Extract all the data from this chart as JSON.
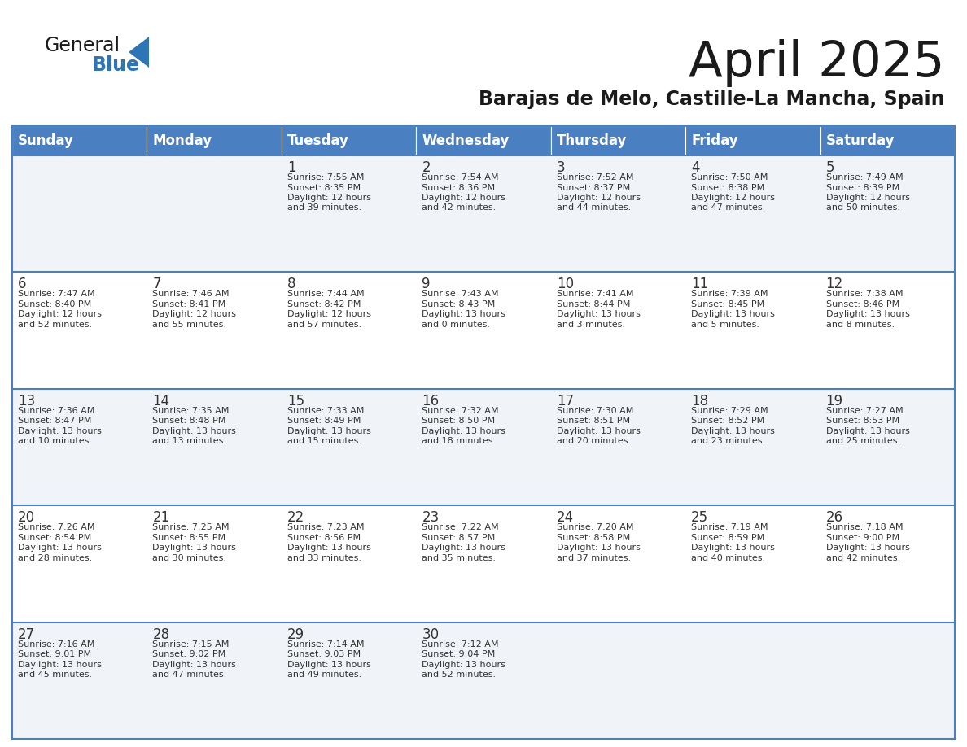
{
  "title": "April 2025",
  "subtitle": "Barajas de Melo, Castille-La Mancha, Spain",
  "header_color": "#4A7FC1",
  "header_text_color": "#FFFFFF",
  "cell_bg_odd": "#F0F4F8",
  "cell_bg_even": "#FFFFFF",
  "border_color": "#4A7FC1",
  "text_color": "#333333",
  "days_of_week": [
    "Sunday",
    "Monday",
    "Tuesday",
    "Wednesday",
    "Thursday",
    "Friday",
    "Saturday"
  ],
  "weeks": [
    [
      {
        "day": "",
        "info": ""
      },
      {
        "day": "",
        "info": ""
      },
      {
        "day": "1",
        "info": "Sunrise: 7:55 AM\nSunset: 8:35 PM\nDaylight: 12 hours\nand 39 minutes."
      },
      {
        "day": "2",
        "info": "Sunrise: 7:54 AM\nSunset: 8:36 PM\nDaylight: 12 hours\nand 42 minutes."
      },
      {
        "day": "3",
        "info": "Sunrise: 7:52 AM\nSunset: 8:37 PM\nDaylight: 12 hours\nand 44 minutes."
      },
      {
        "day": "4",
        "info": "Sunrise: 7:50 AM\nSunset: 8:38 PM\nDaylight: 12 hours\nand 47 minutes."
      },
      {
        "day": "5",
        "info": "Sunrise: 7:49 AM\nSunset: 8:39 PM\nDaylight: 12 hours\nand 50 minutes."
      }
    ],
    [
      {
        "day": "6",
        "info": "Sunrise: 7:47 AM\nSunset: 8:40 PM\nDaylight: 12 hours\nand 52 minutes."
      },
      {
        "day": "7",
        "info": "Sunrise: 7:46 AM\nSunset: 8:41 PM\nDaylight: 12 hours\nand 55 minutes."
      },
      {
        "day": "8",
        "info": "Sunrise: 7:44 AM\nSunset: 8:42 PM\nDaylight: 12 hours\nand 57 minutes."
      },
      {
        "day": "9",
        "info": "Sunrise: 7:43 AM\nSunset: 8:43 PM\nDaylight: 13 hours\nand 0 minutes."
      },
      {
        "day": "10",
        "info": "Sunrise: 7:41 AM\nSunset: 8:44 PM\nDaylight: 13 hours\nand 3 minutes."
      },
      {
        "day": "11",
        "info": "Sunrise: 7:39 AM\nSunset: 8:45 PM\nDaylight: 13 hours\nand 5 minutes."
      },
      {
        "day": "12",
        "info": "Sunrise: 7:38 AM\nSunset: 8:46 PM\nDaylight: 13 hours\nand 8 minutes."
      }
    ],
    [
      {
        "day": "13",
        "info": "Sunrise: 7:36 AM\nSunset: 8:47 PM\nDaylight: 13 hours\nand 10 minutes."
      },
      {
        "day": "14",
        "info": "Sunrise: 7:35 AM\nSunset: 8:48 PM\nDaylight: 13 hours\nand 13 minutes."
      },
      {
        "day": "15",
        "info": "Sunrise: 7:33 AM\nSunset: 8:49 PM\nDaylight: 13 hours\nand 15 minutes."
      },
      {
        "day": "16",
        "info": "Sunrise: 7:32 AM\nSunset: 8:50 PM\nDaylight: 13 hours\nand 18 minutes."
      },
      {
        "day": "17",
        "info": "Sunrise: 7:30 AM\nSunset: 8:51 PM\nDaylight: 13 hours\nand 20 minutes."
      },
      {
        "day": "18",
        "info": "Sunrise: 7:29 AM\nSunset: 8:52 PM\nDaylight: 13 hours\nand 23 minutes."
      },
      {
        "day": "19",
        "info": "Sunrise: 7:27 AM\nSunset: 8:53 PM\nDaylight: 13 hours\nand 25 minutes."
      }
    ],
    [
      {
        "day": "20",
        "info": "Sunrise: 7:26 AM\nSunset: 8:54 PM\nDaylight: 13 hours\nand 28 minutes."
      },
      {
        "day": "21",
        "info": "Sunrise: 7:25 AM\nSunset: 8:55 PM\nDaylight: 13 hours\nand 30 minutes."
      },
      {
        "day": "22",
        "info": "Sunrise: 7:23 AM\nSunset: 8:56 PM\nDaylight: 13 hours\nand 33 minutes."
      },
      {
        "day": "23",
        "info": "Sunrise: 7:22 AM\nSunset: 8:57 PM\nDaylight: 13 hours\nand 35 minutes."
      },
      {
        "day": "24",
        "info": "Sunrise: 7:20 AM\nSunset: 8:58 PM\nDaylight: 13 hours\nand 37 minutes."
      },
      {
        "day": "25",
        "info": "Sunrise: 7:19 AM\nSunset: 8:59 PM\nDaylight: 13 hours\nand 40 minutes."
      },
      {
        "day": "26",
        "info": "Sunrise: 7:18 AM\nSunset: 9:00 PM\nDaylight: 13 hours\nand 42 minutes."
      }
    ],
    [
      {
        "day": "27",
        "info": "Sunrise: 7:16 AM\nSunset: 9:01 PM\nDaylight: 13 hours\nand 45 minutes."
      },
      {
        "day": "28",
        "info": "Sunrise: 7:15 AM\nSunset: 9:02 PM\nDaylight: 13 hours\nand 47 minutes."
      },
      {
        "day": "29",
        "info": "Sunrise: 7:14 AM\nSunset: 9:03 PM\nDaylight: 13 hours\nand 49 minutes."
      },
      {
        "day": "30",
        "info": "Sunrise: 7:12 AM\nSunset: 9:04 PM\nDaylight: 13 hours\nand 52 minutes."
      },
      {
        "day": "",
        "info": ""
      },
      {
        "day": "",
        "info": ""
      },
      {
        "day": "",
        "info": ""
      }
    ]
  ],
  "logo_general_color": "#1a1a1a",
  "logo_blue_color": "#2E75B6",
  "logo_triangle_color": "#2E75B6",
  "title_color": "#1a1a1a",
  "subtitle_color": "#1a1a1a"
}
